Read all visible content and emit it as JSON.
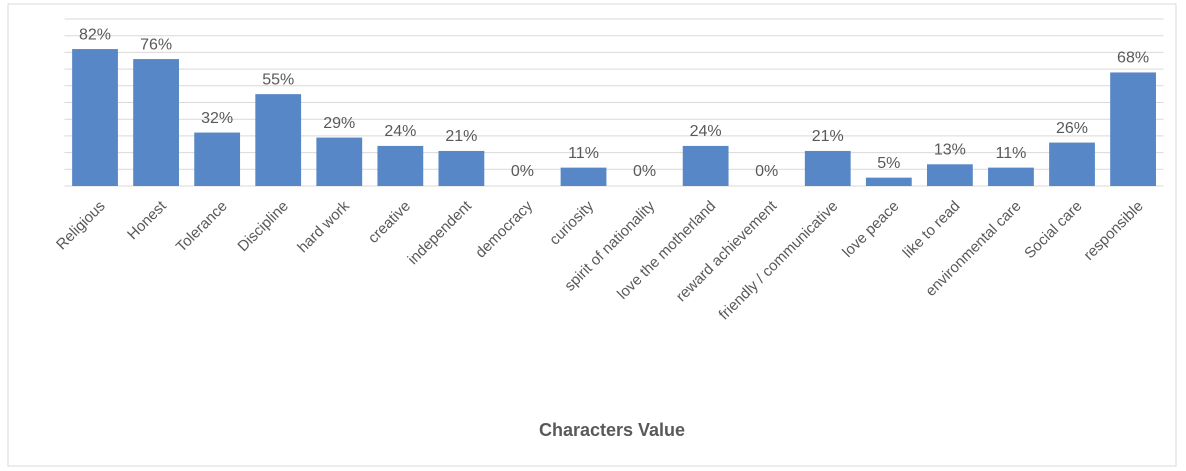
{
  "chart_data": {
    "type": "bar",
    "x_label": "Characters Value",
    "categories": [
      "Religious",
      "Honest",
      "Tolerance",
      "Discipline",
      "hard work",
      "creative",
      "independent",
      "democracy",
      "curiosity",
      "spirit of nationality",
      "love the motherland",
      "reward achievement",
      "friendly / communicative",
      "love peace",
      "like to read",
      "environmental care",
      "Social care",
      "responsible"
    ],
    "values": [
      82,
      76,
      32,
      55,
      29,
      24,
      21,
      0,
      11,
      0,
      24,
      0,
      21,
      5,
      13,
      11,
      26,
      68
    ],
    "value_labels": [
      "82%",
      "76%",
      "32%",
      "55%",
      "29%",
      "24%",
      "21%",
      "0%",
      "11%",
      "0%",
      "24%",
      "0%",
      "21%",
      "5%",
      "13%",
      "11%",
      "26%",
      "68%"
    ],
    "color": "#5787c6",
    "ylim": [
      0,
      100
    ],
    "yticks": [
      0,
      10,
      20,
      30,
      40,
      50,
      60,
      70,
      80,
      90,
      100
    ],
    "grid": true
  }
}
